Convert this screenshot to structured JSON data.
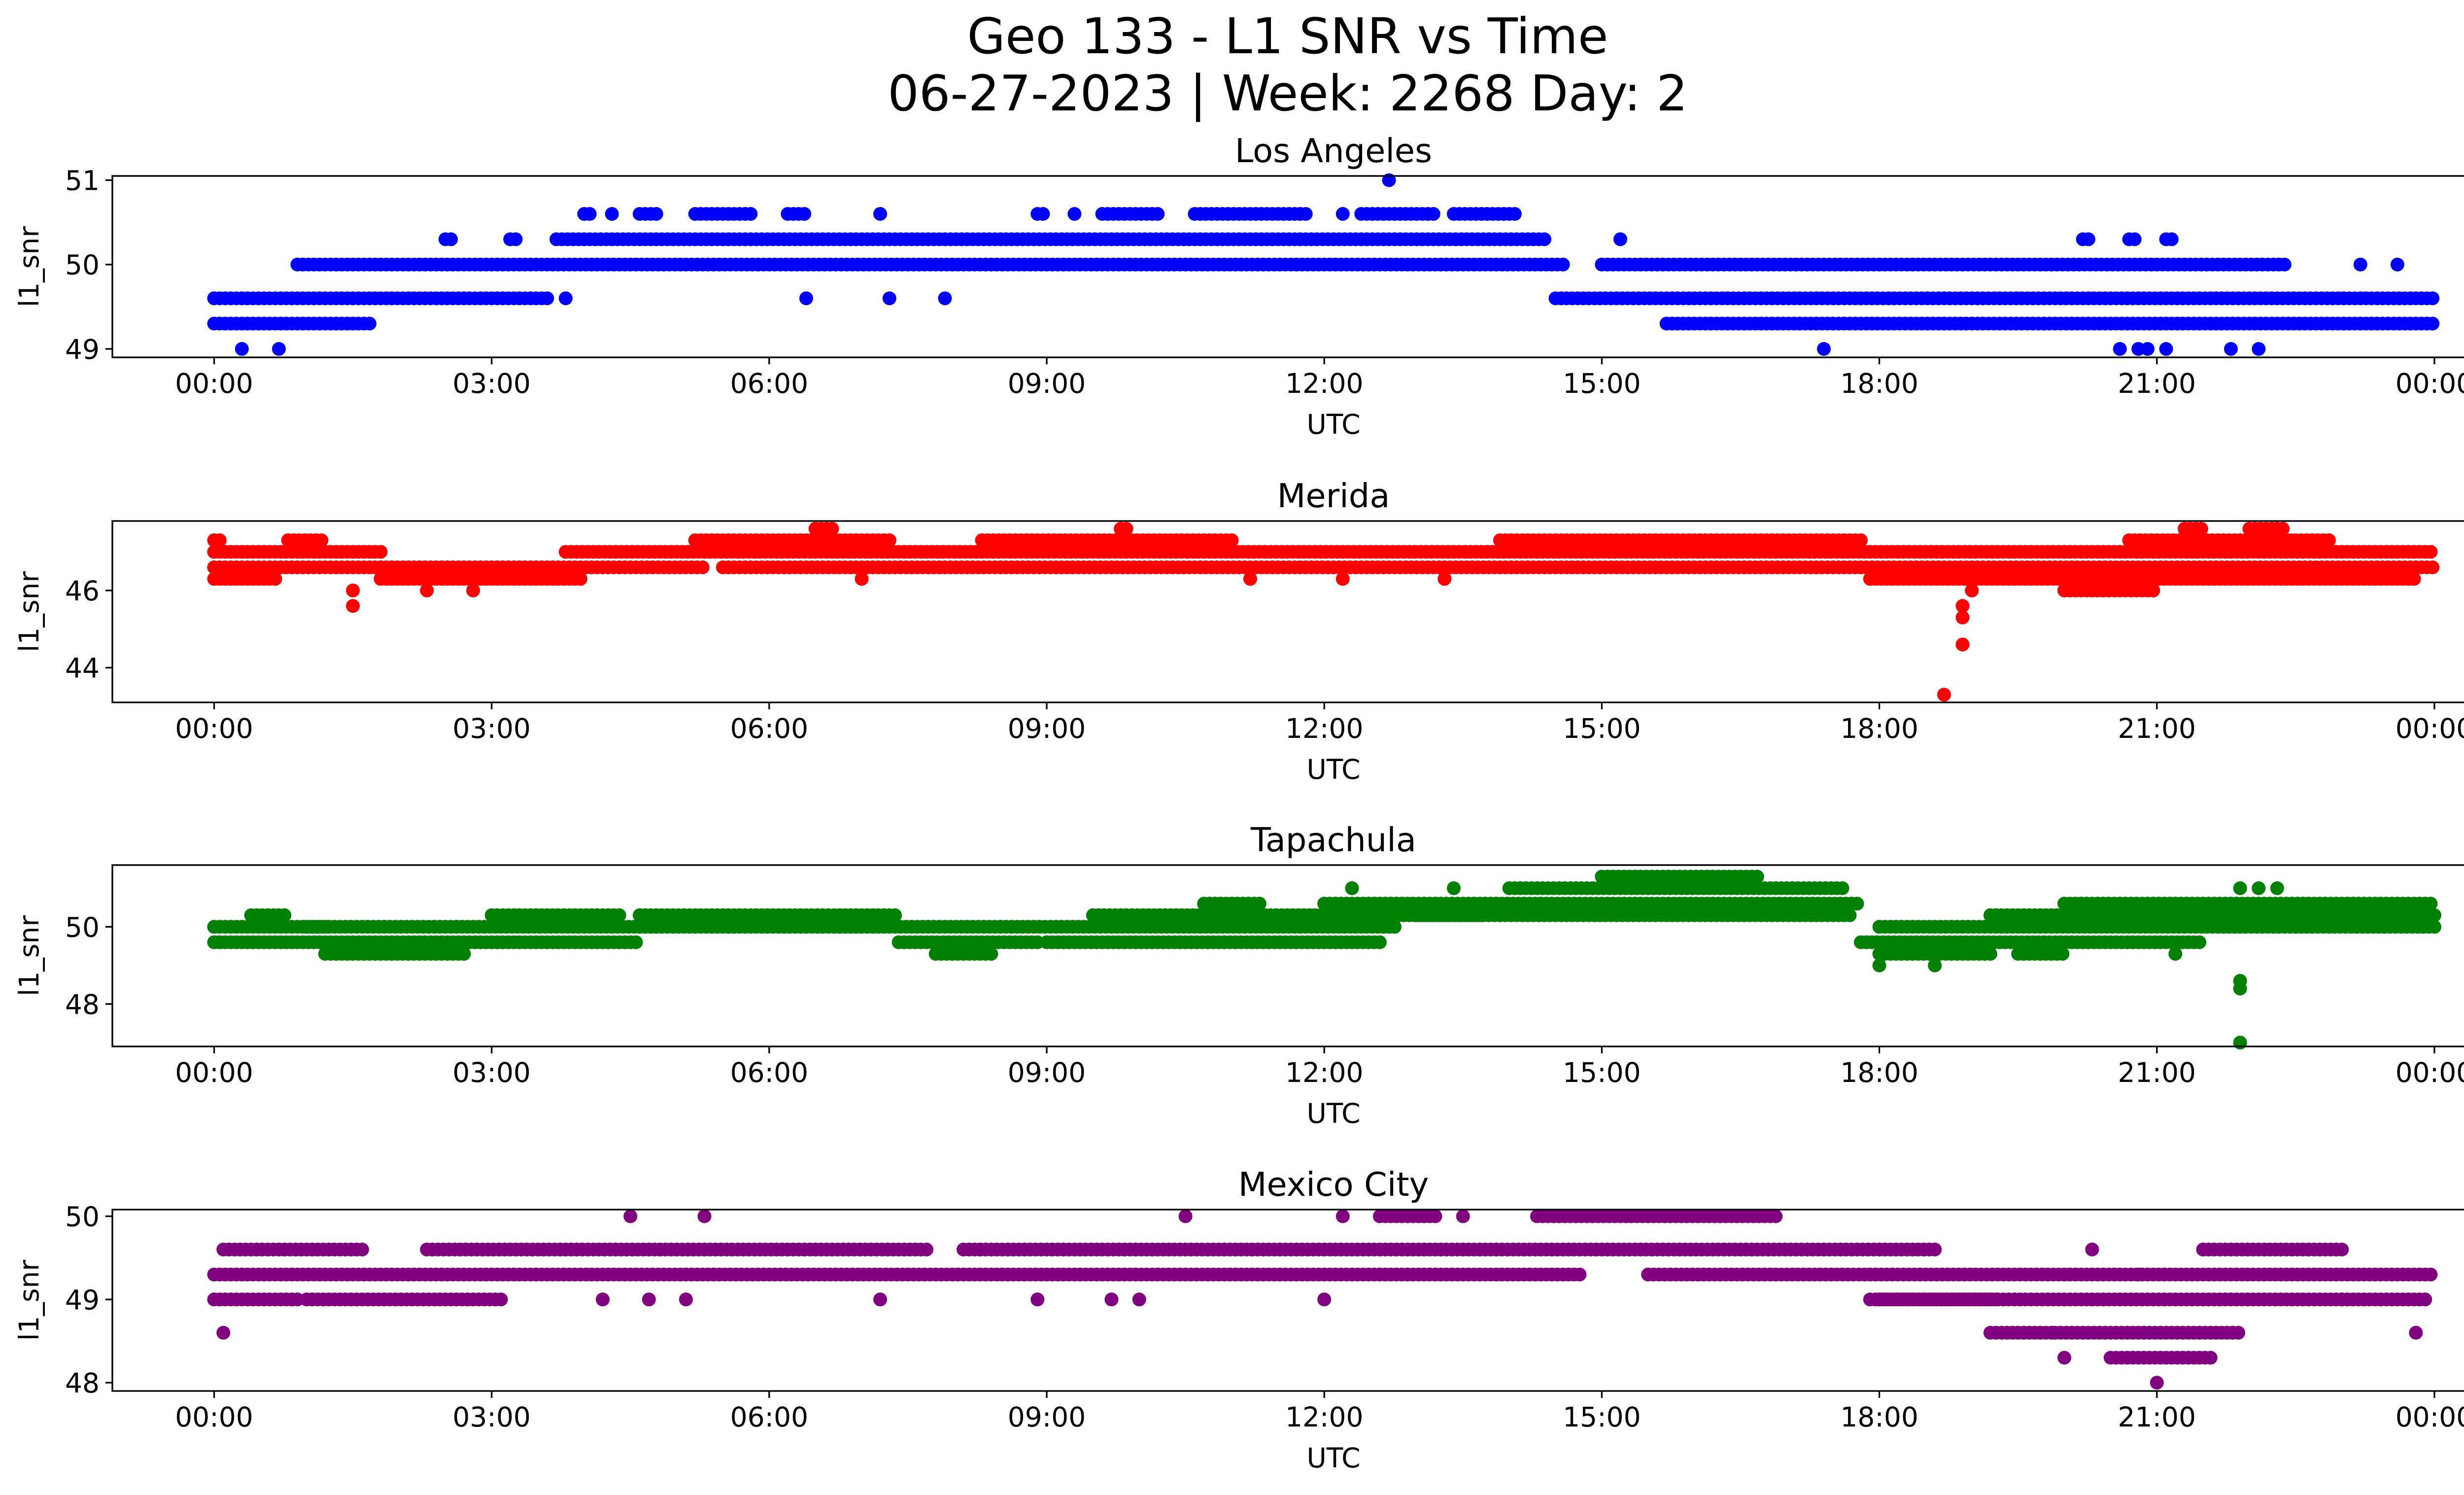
{
  "figure": {
    "title_line1": "Geo 133 - L1 SNR vs Time",
    "title_line2": "06-27-2023 | Week: 2268 Day: 2"
  },
  "chart_data": [
    {
      "type": "scatter",
      "title": "Los Angeles",
      "xlabel": "UTC",
      "ylabel": "l1_snr",
      "color": "#0000ff",
      "xlim": [
        -1.1,
        25.3
      ],
      "ylim": [
        48.9,
        51.05
      ],
      "xticks": [
        0,
        3,
        6,
        9,
        12,
        15,
        18,
        21,
        24
      ],
      "xtick_labels": [
        "00:00",
        "03:00",
        "06:00",
        "09:00",
        "12:00",
        "15:00",
        "18:00",
        "21:00",
        "00:00"
      ],
      "yticks": [
        49,
        50,
        51
      ],
      "ytick_labels": [
        "49",
        "50",
        "51"
      ],
      "runs": [
        [
          0.0,
          1.7,
          49.3
        ],
        [
          0.0,
          3.6,
          49.6
        ],
        [
          0.9,
          14.6,
          50.0
        ],
        [
          2.5,
          2.6,
          50.3
        ],
        [
          3.2,
          3.3,
          50.3
        ],
        [
          3.7,
          14.4,
          50.3
        ],
        [
          4.0,
          4.1,
          50.6
        ],
        [
          4.6,
          4.8,
          50.6
        ],
        [
          5.2,
          5.8,
          50.6
        ],
        [
          6.2,
          6.4,
          50.6
        ],
        [
          8.9,
          9.0,
          50.6
        ],
        [
          9.6,
          10.2,
          50.6
        ],
        [
          10.6,
          11.8,
          50.6
        ],
        [
          12.4,
          13.2,
          50.6
        ],
        [
          13.4,
          14.1,
          50.6
        ],
        [
          14.5,
          24.0,
          49.6
        ],
        [
          15.0,
          22.4,
          50.0
        ],
        [
          15.7,
          24.0,
          49.3
        ],
        [
          20.2,
          20.3,
          50.3
        ],
        [
          20.7,
          20.8,
          50.3
        ],
        [
          21.1,
          21.2,
          50.3
        ]
      ],
      "outliers": [
        [
          0.3,
          49.0
        ],
        [
          0.7,
          49.0
        ],
        [
          3.8,
          49.6
        ],
        [
          6.4,
          49.6
        ],
        [
          7.3,
          49.6
        ],
        [
          7.9,
          49.6
        ],
        [
          4.3,
          50.6
        ],
        [
          7.2,
          50.6
        ],
        [
          9.3,
          50.6
        ],
        [
          12.2,
          50.6
        ],
        [
          12.7,
          51.0
        ],
        [
          15.2,
          50.3
        ],
        [
          17.4,
          49.0
        ],
        [
          20.6,
          49.0
        ],
        [
          20.8,
          49.0
        ],
        [
          20.9,
          49.0
        ],
        [
          21.1,
          49.0
        ],
        [
          21.8,
          49.0
        ],
        [
          22.1,
          49.0
        ],
        [
          23.2,
          50.0
        ],
        [
          23.6,
          50.0
        ]
      ]
    },
    {
      "type": "scatter",
      "title": "Merida",
      "xlabel": "UTC",
      "ylabel": "l1_snr",
      "color": "#ff0000",
      "xlim": [
        -1.1,
        25.3
      ],
      "ylim": [
        43.1,
        47.8
      ],
      "xticks": [
        0,
        3,
        6,
        9,
        12,
        15,
        18,
        21,
        24
      ],
      "xtick_labels": [
        "00:00",
        "03:00",
        "06:00",
        "09:00",
        "12:00",
        "15:00",
        "18:00",
        "21:00",
        "00:00"
      ],
      "yticks": [
        44,
        46
      ],
      "ytick_labels": [
        "44",
        "46"
      ],
      "runs": [
        [
          0.0,
          0.7,
          46.3
        ],
        [
          0.0,
          1.8,
          46.6
        ],
        [
          0.0,
          1.8,
          47.0
        ],
        [
          0.0,
          0.1,
          47.3
        ],
        [
          0.8,
          1.2,
          47.3
        ],
        [
          1.8,
          4.0,
          46.3
        ],
        [
          1.8,
          5.3,
          46.6
        ],
        [
          3.8,
          24.0,
          47.0
        ],
        [
          5.2,
          7.3,
          47.3
        ],
        [
          6.5,
          6.7,
          47.6
        ],
        [
          5.5,
          24.0,
          46.6
        ],
        [
          8.3,
          11.0,
          47.3
        ],
        [
          9.8,
          9.9,
          47.6
        ],
        [
          13.9,
          17.8,
          47.3
        ],
        [
          17.9,
          23.8,
          46.3
        ],
        [
          20.0,
          21.0,
          46.0
        ],
        [
          20.7,
          22.9,
          47.3
        ],
        [
          21.3,
          21.5,
          47.6
        ],
        [
          22.0,
          22.4,
          47.6
        ]
      ],
      "outliers": [
        [
          1.5,
          45.6
        ],
        [
          1.5,
          46.0
        ],
        [
          2.3,
          46.0
        ],
        [
          2.8,
          46.0
        ],
        [
          7.0,
          46.3
        ],
        [
          11.2,
          46.3
        ],
        [
          12.2,
          46.3
        ],
        [
          13.3,
          46.3
        ],
        [
          18.7,
          43.3
        ],
        [
          18.9,
          44.6
        ],
        [
          18.9,
          45.3
        ],
        [
          18.9,
          45.6
        ],
        [
          19.0,
          46.0
        ]
      ]
    },
    {
      "type": "scatter",
      "title": "Tapachula",
      "xlabel": "UTC",
      "ylabel": "l1_snr",
      "color": "#008000",
      "xlim": [
        -1.1,
        25.3
      ],
      "ylim": [
        46.9,
        51.6
      ],
      "xticks": [
        0,
        3,
        6,
        9,
        12,
        15,
        18,
        21,
        24
      ],
      "xtick_labels": [
        "00:00",
        "03:00",
        "06:00",
        "09:00",
        "12:00",
        "15:00",
        "18:00",
        "21:00",
        "00:00"
      ],
      "yticks": [
        48,
        50
      ],
      "ytick_labels": [
        "48",
        "50"
      ],
      "runs": [
        [
          0.0,
          4.6,
          49.6
        ],
        [
          0.0,
          1.2,
          50.0
        ],
        [
          0.4,
          0.8,
          50.3
        ],
        [
          1.2,
          2.7,
          49.3
        ],
        [
          1.0,
          12.8,
          50.0
        ],
        [
          3.0,
          4.4,
          50.3
        ],
        [
          4.6,
          7.4,
          50.3
        ],
        [
          7.4,
          8.9,
          49.6
        ],
        [
          7.8,
          8.4,
          49.3
        ],
        [
          9.0,
          12.6,
          49.6
        ],
        [
          9.5,
          13.7,
          50.3
        ],
        [
          10.7,
          11.3,
          50.6
        ],
        [
          12.0,
          17.8,
          50.6
        ],
        [
          13.0,
          17.7,
          50.3
        ],
        [
          14.0,
          17.6,
          51.0
        ],
        [
          15.0,
          16.7,
          51.3
        ],
        [
          17.8,
          21.5,
          49.6
        ],
        [
          18.0,
          19.2,
          49.3
        ],
        [
          19.5,
          20.0,
          49.3
        ],
        [
          18.0,
          24.0,
          50.0
        ],
        [
          19.2,
          24.0,
          50.3
        ],
        [
          20.0,
          24.0,
          50.6
        ]
      ],
      "outliers": [
        [
          12.3,
          51.0
        ],
        [
          13.4,
          51.0
        ],
        [
          18.0,
          49.0
        ],
        [
          18.6,
          49.0
        ],
        [
          21.2,
          49.3
        ],
        [
          21.9,
          48.4
        ],
        [
          21.9,
          48.6
        ],
        [
          21.9,
          47.0
        ],
        [
          21.9,
          51.0
        ],
        [
          22.1,
          51.0
        ],
        [
          22.3,
          51.0
        ]
      ]
    },
    {
      "type": "scatter",
      "title": "Mexico City",
      "xlabel": "UTC",
      "ylabel": "l1_snr",
      "color": "#800080",
      "xlim": [
        -1.1,
        25.3
      ],
      "ylim": [
        47.9,
        50.08
      ],
      "xticks": [
        0,
        3,
        6,
        9,
        12,
        15,
        18,
        21,
        24
      ],
      "xtick_labels": [
        "00:00",
        "03:00",
        "06:00",
        "09:00",
        "12:00",
        "15:00",
        "18:00",
        "21:00",
        "00:00"
      ],
      "yticks": [
        48,
        49,
        50
      ],
      "ytick_labels": [
        "48",
        "49",
        "50"
      ],
      "runs": [
        [
          0.0,
          0.9,
          49.0
        ],
        [
          1.0,
          3.1,
          49.0
        ],
        [
          0.0,
          14.8,
          49.3
        ],
        [
          15.5,
          24.0,
          49.3
        ],
        [
          0.1,
          1.6,
          49.6
        ],
        [
          2.3,
          7.7,
          49.6
        ],
        [
          8.1,
          18.6,
          49.6
        ],
        [
          12.6,
          13.2,
          50.0
        ],
        [
          14.3,
          16.9,
          50.0
        ],
        [
          17.9,
          23.9,
          49.0
        ],
        [
          18.0,
          19.3,
          49.0
        ],
        [
          19.2,
          19.9,
          48.6
        ],
        [
          19.9,
          21.9,
          48.6
        ],
        [
          20.5,
          21.6,
          48.3
        ],
        [
          21.5,
          23.0,
          49.6
        ]
      ],
      "outliers": [
        [
          0.1,
          48.6
        ],
        [
          4.5,
          50.0
        ],
        [
          5.3,
          50.0
        ],
        [
          10.5,
          50.0
        ],
        [
          12.2,
          50.0
        ],
        [
          13.5,
          50.0
        ],
        [
          4.2,
          49.0
        ],
        [
          4.7,
          49.0
        ],
        [
          5.1,
          49.0
        ],
        [
          7.2,
          49.0
        ],
        [
          8.9,
          49.0
        ],
        [
          9.7,
          49.0
        ],
        [
          10.0,
          49.0
        ],
        [
          12.0,
          49.0
        ],
        [
          20.0,
          48.3
        ],
        [
          21.0,
          48.0
        ],
        [
          20.3,
          49.6
        ],
        [
          21.5,
          49.6
        ],
        [
          20.8,
          49.3
        ],
        [
          23.0,
          49.0
        ],
        [
          23.8,
          48.6
        ]
      ]
    }
  ]
}
